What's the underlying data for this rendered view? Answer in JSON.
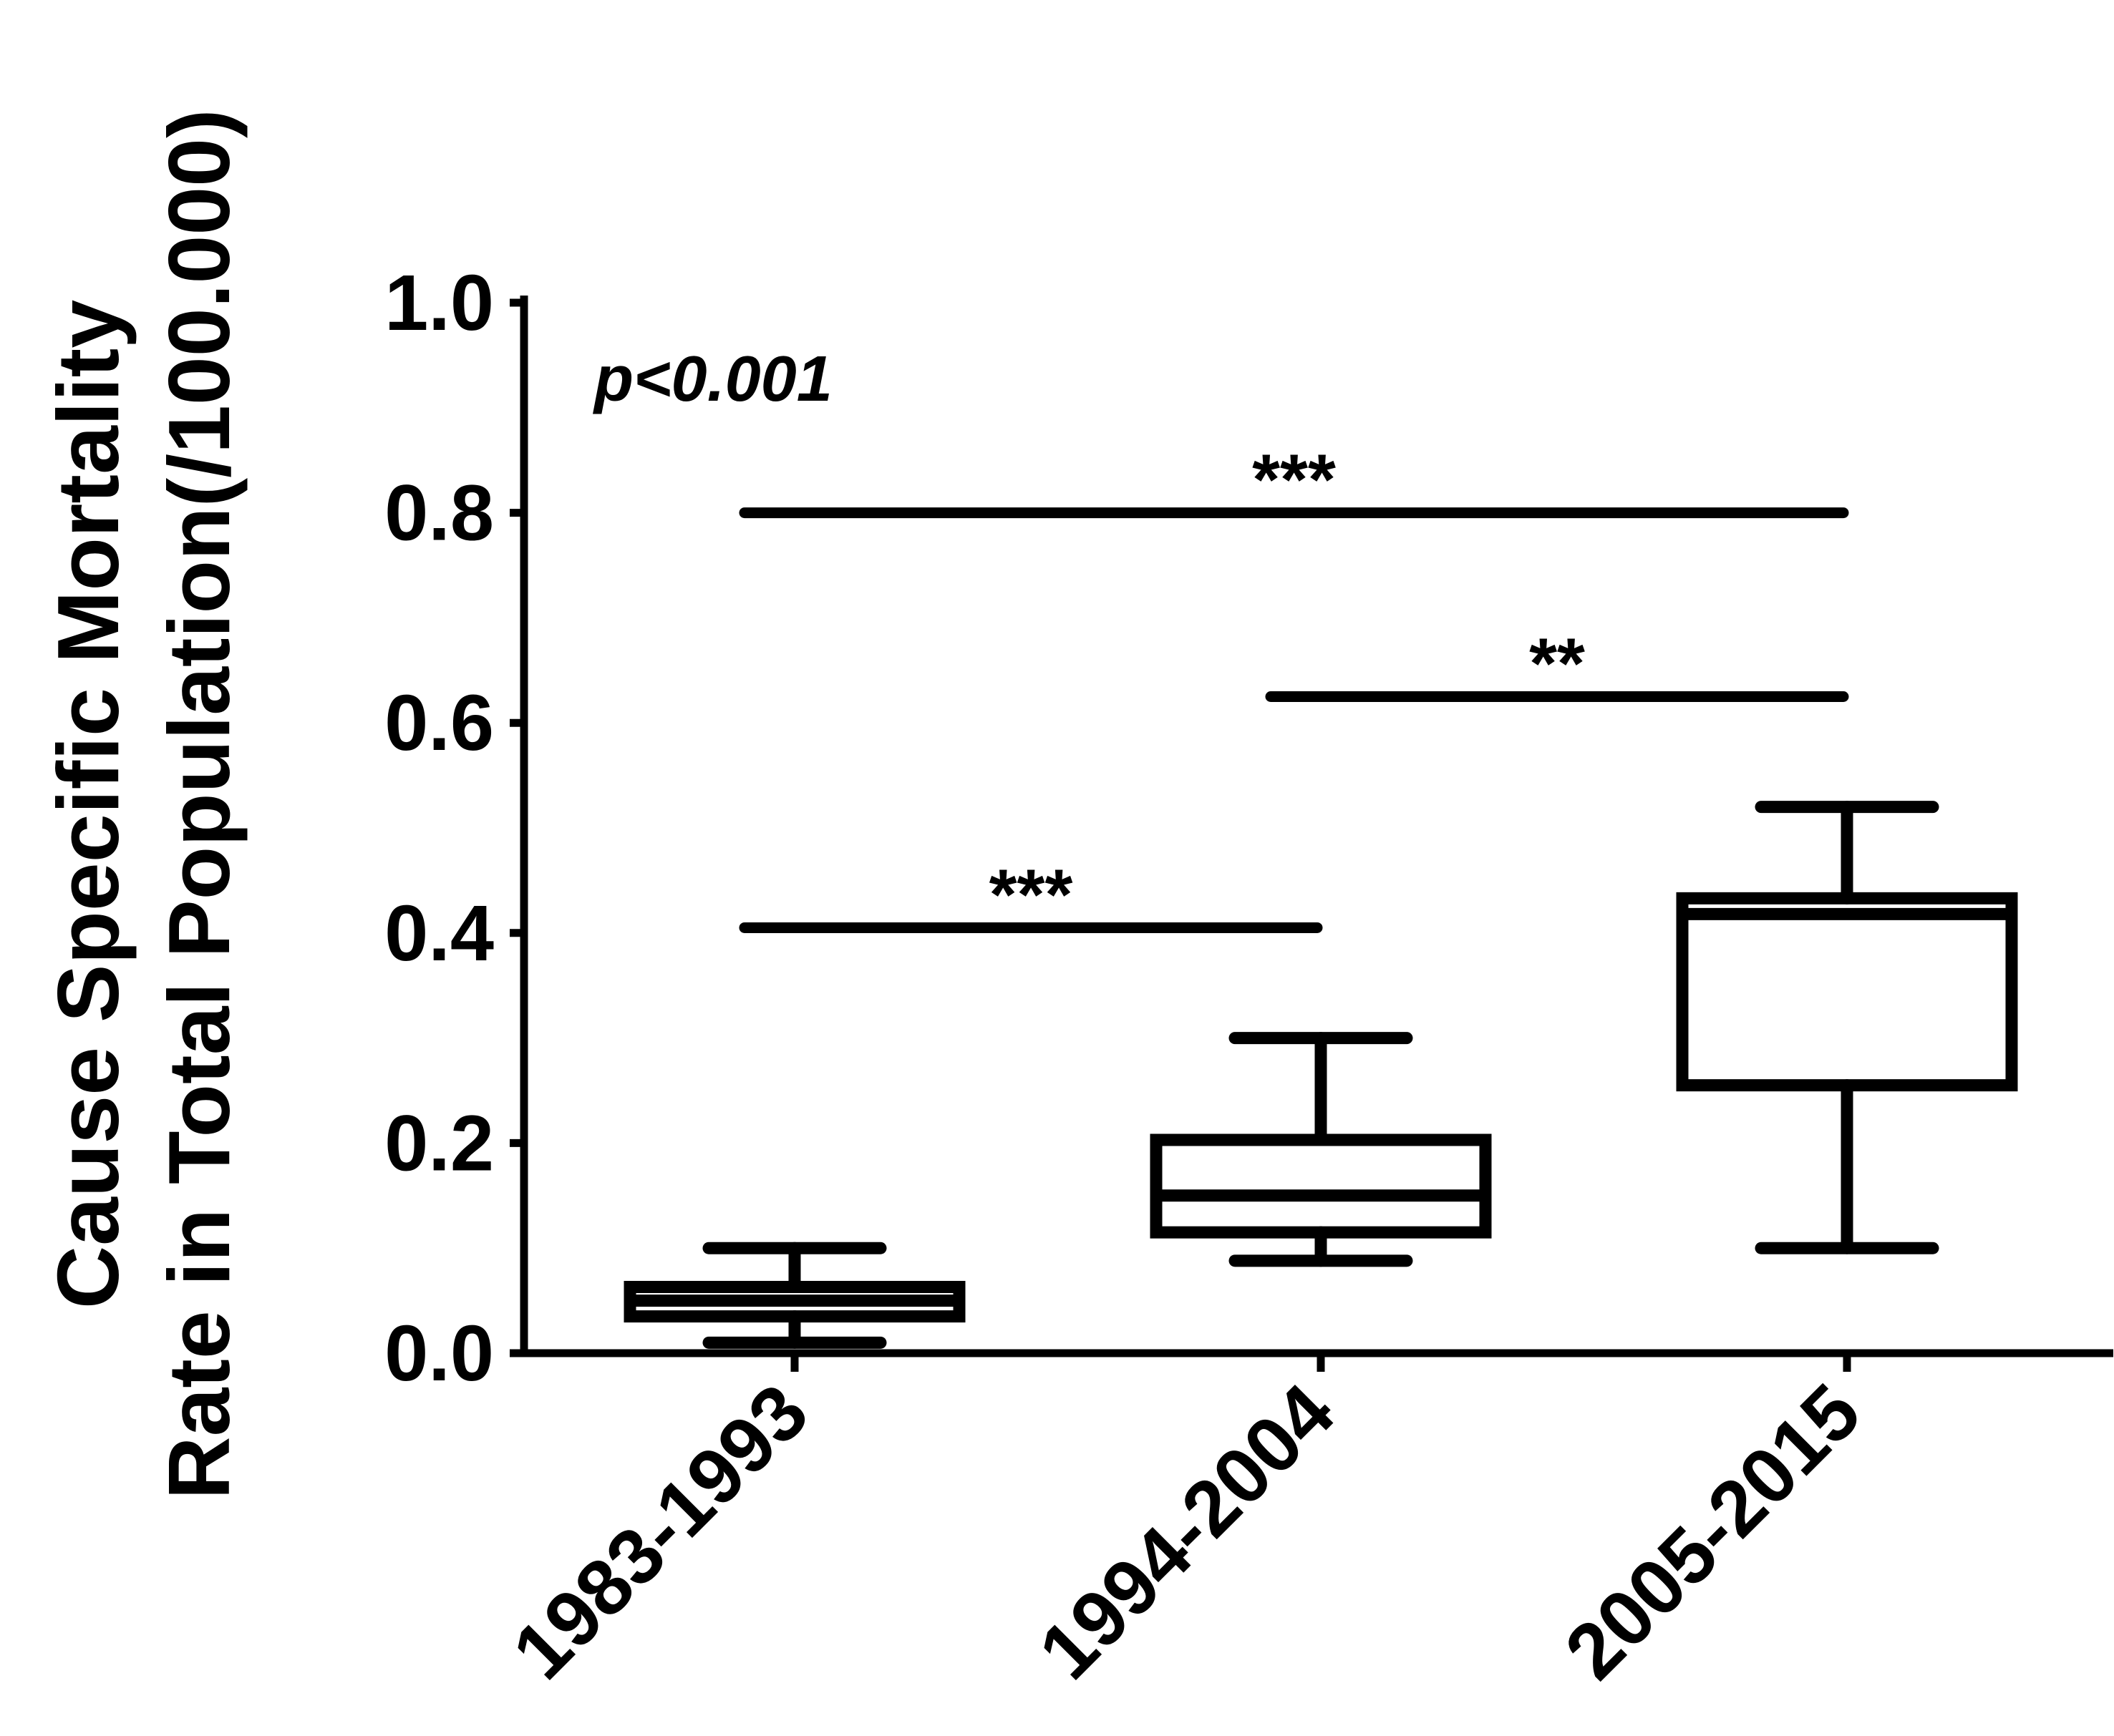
{
  "chart_data": {
    "type": "boxplot",
    "ylabel_line1": "Cause Specific Mortality",
    "ylabel_line2": "Rate in Total Population(/100.000)",
    "xlabel": "",
    "ylim": [
      0,
      1.0
    ],
    "yticks": [
      "0.0",
      "0.2",
      "0.4",
      "0.6",
      "0.8",
      "1.0"
    ],
    "ytick_values": [
      0,
      0.2,
      0.4,
      0.6,
      0.8,
      1.0
    ],
    "categories": [
      "1983-1993",
      "1994-2004",
      "2005-2015"
    ],
    "boxes": [
      {
        "name": "1983-1993",
        "min": 0.01,
        "q1": 0.035,
        "median": 0.05,
        "q3": 0.063,
        "max": 0.1
      },
      {
        "name": "1994-2004",
        "min": 0.088,
        "q1": 0.115,
        "median": 0.15,
        "q3": 0.203,
        "max": 0.3
      },
      {
        "name": "2005-2015",
        "min": 0.1,
        "q1": 0.255,
        "median": 0.418,
        "q3": 0.433,
        "max": 0.52
      }
    ],
    "annotation": "p<0.001",
    "comparisons": [
      {
        "from": 0,
        "to": 2,
        "y": 0.8,
        "label": "***"
      },
      {
        "from": 1,
        "to": 2,
        "y": 0.625,
        "label": "**"
      },
      {
        "from": 0,
        "to": 1,
        "y": 0.405,
        "label": "***"
      }
    ]
  }
}
